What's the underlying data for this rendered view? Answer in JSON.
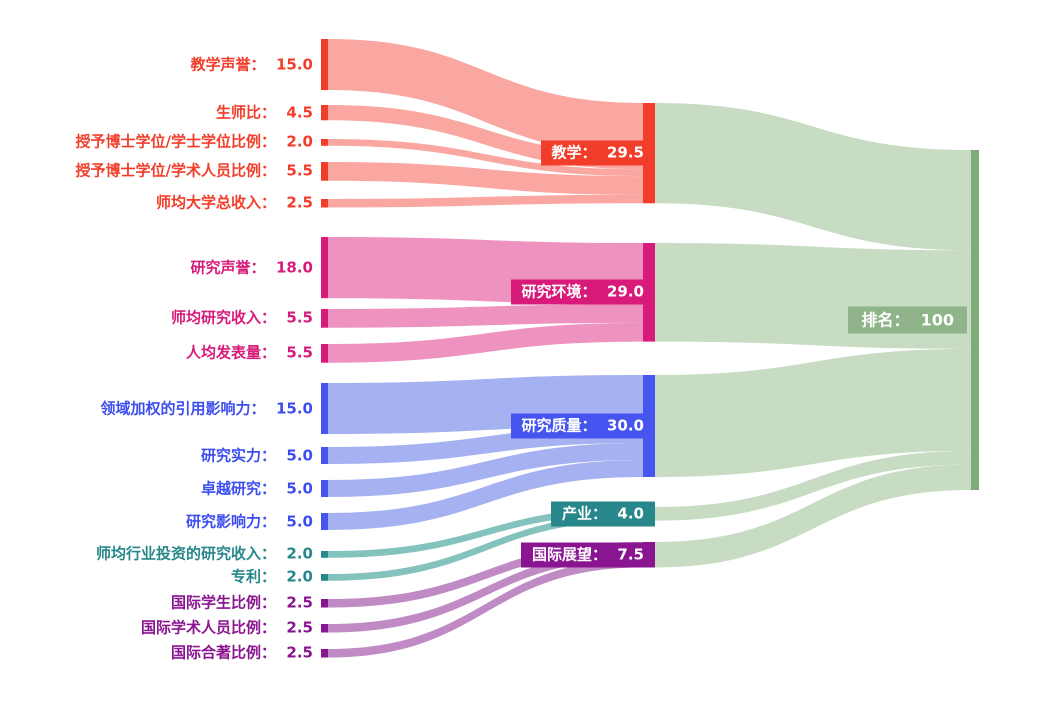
{
  "chart_data": {
    "type": "sankey",
    "title": "",
    "orientation": "left-to-right",
    "columns": [
      "metrics",
      "pillars",
      "rank"
    ],
    "label_separator": "：  ",
    "groups": {
      "teaching": {
        "node_color": "#f23d2a",
        "flow_color": "#f9a7a0",
        "text_color": "#f23d2a"
      },
      "research_env": {
        "node_color": "#d81b7a",
        "flow_color": "#ee92c0",
        "text_color": "#d81b7a"
      },
      "research_quality": {
        "node_color": "#4655f0",
        "flow_color": "#a6b1f2",
        "text_color": "#3d4ef0"
      },
      "industry": {
        "node_color": "#28878a",
        "flow_color": "#84c2bd",
        "text_color": "#28878a"
      },
      "international": {
        "node_color": "#8a1591",
        "flow_color": "#c08ac4",
        "text_color": "#8a1591"
      }
    },
    "rank_colors": {
      "node": "#7fab79",
      "flow": "#c7dcc3",
      "label_box": "#8fb48a",
      "label_text": "#ffffff"
    },
    "left_nodes": [
      {
        "label": "教学声誉",
        "display": "15.0",
        "value": 15.0,
        "group": "teaching"
      },
      {
        "label": "生师比",
        "display": "4.5",
        "value": 4.5,
        "group": "teaching"
      },
      {
        "label": "授予博士学位/学士学位比例",
        "display": "2.0",
        "value": 2.0,
        "group": "teaching"
      },
      {
        "label": "授予博士学位/学术人员比例",
        "display": "5.5",
        "value": 5.5,
        "group": "teaching"
      },
      {
        "label": "师均大学总收入",
        "display": "2.5",
        "value": 2.5,
        "group": "teaching"
      },
      {
        "label": "研究声誉",
        "display": "18.0",
        "value": 18.0,
        "group": "research_env"
      },
      {
        "label": "师均研究收入",
        "display": "5.5",
        "value": 5.5,
        "group": "research_env"
      },
      {
        "label": "人均发表量",
        "display": "5.5",
        "value": 5.5,
        "group": "research_env"
      },
      {
        "label": "领域加权的引用影响力",
        "display": "15.0",
        "value": 15.0,
        "group": "research_quality"
      },
      {
        "label": "研究实力",
        "display": "5.0",
        "value": 5.0,
        "group": "research_quality"
      },
      {
        "label": "卓越研究",
        "display": "5.0",
        "value": 5.0,
        "group": "research_quality"
      },
      {
        "label": "研究影响力",
        "display": "5.0",
        "value": 5.0,
        "group": "research_quality"
      },
      {
        "label": "师均行业投资的研究收入",
        "display": "2.0",
        "value": 2.0,
        "group": "industry"
      },
      {
        "label": "专利",
        "display": "2.0",
        "value": 2.0,
        "group": "industry"
      },
      {
        "label": "国际学生比例",
        "display": "2.5",
        "value": 2.5,
        "group": "international"
      },
      {
        "label": "国际学术人员比例",
        "display": "2.5",
        "value": 2.5,
        "group": "international"
      },
      {
        "label": "国际合著比例",
        "display": "2.5",
        "value": 2.5,
        "group": "international"
      }
    ],
    "middle_nodes": [
      {
        "label": "教学",
        "display": "29.5",
        "value": 29.5,
        "group": "teaching"
      },
      {
        "label": "研究环境",
        "display": "29.0",
        "value": 29.0,
        "group": "research_env"
      },
      {
        "label": "研究质量",
        "display": "30.0",
        "value": 30.0,
        "group": "research_quality"
      },
      {
        "label": "产业",
        "display": "4.0",
        "value": 4.0,
        "group": "industry"
      },
      {
        "label": "国际展望",
        "display": "7.5",
        "value": 7.5,
        "group": "international"
      }
    ],
    "right_node": {
      "label": "排名",
      "display": "100",
      "value": 100
    }
  }
}
